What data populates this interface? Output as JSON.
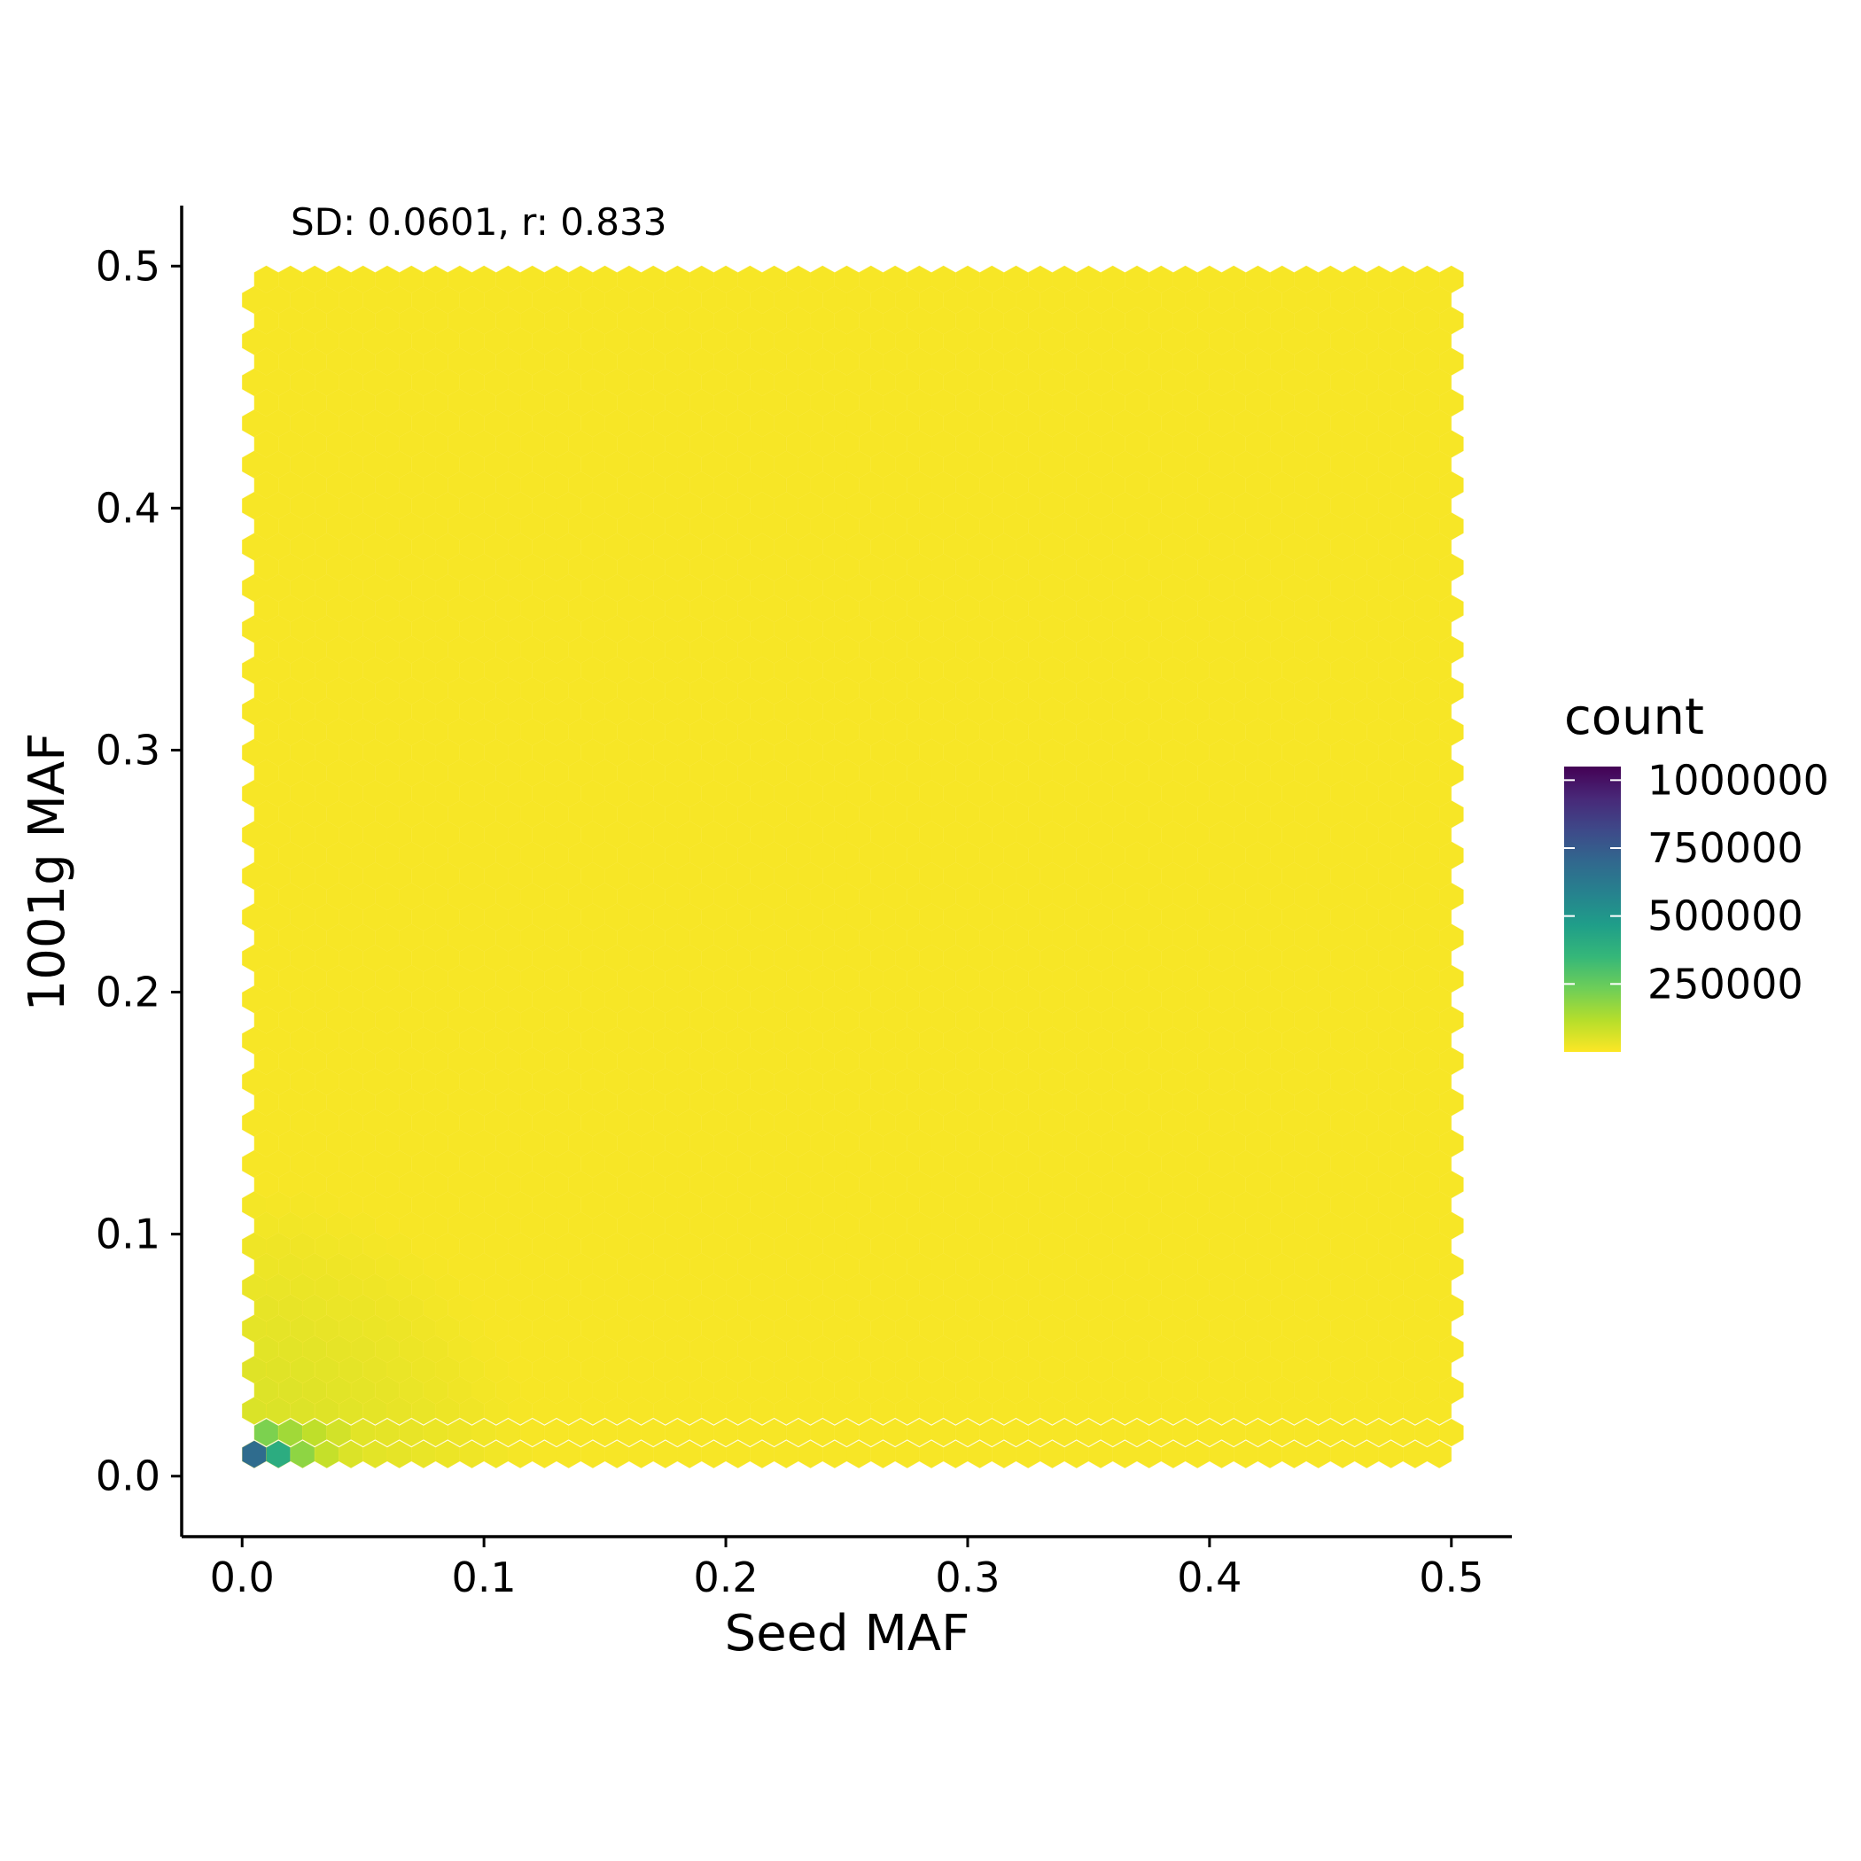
{
  "chart_data": {
    "type": "hexbin",
    "title": "",
    "annotation": "SD: 0.0601, r: 0.833",
    "xlabel": "Seed MAF",
    "ylabel": "1001g MAF",
    "xlim": [
      -0.025,
      0.525
    ],
    "ylim": [
      -0.025,
      0.525
    ],
    "x_ticks": [
      0.0,
      0.1,
      0.2,
      0.3,
      0.4,
      0.5
    ],
    "x_tick_labels": [
      "0.0",
      "0.1",
      "0.2",
      "0.3",
      "0.4",
      "0.5"
    ],
    "y_ticks": [
      0.0,
      0.1,
      0.2,
      0.3,
      0.4,
      0.5
    ],
    "y_tick_labels": [
      "0.0",
      "0.1",
      "0.2",
      "0.3",
      "0.4",
      "0.5"
    ],
    "grid": false,
    "colormap": "viridis (reversed: low = yellow, high = purple)",
    "color_low": "#fde725",
    "color_high": "#440154",
    "legend": {
      "title": "count",
      "placement": "right",
      "min": 0,
      "max": 1050000,
      "breaks": [
        250000,
        500000,
        750000,
        1000000
      ],
      "break_labels": [
        "250000",
        "500000",
        "750000",
        "1000000"
      ]
    },
    "bin_width": 0.01,
    "bins_x_range": [
      0.005,
      0.5
    ],
    "bins_y_range": [
      0.01,
      0.5
    ],
    "notable_bins": [
      {
        "x": 0.005,
        "y": 0.009,
        "count": 680000
      },
      {
        "x": 0.015,
        "y": 0.009,
        "count": 400000
      },
      {
        "x": 0.025,
        "y": 0.009,
        "count": 180000
      },
      {
        "x": 0.035,
        "y": 0.009,
        "count": 90000
      },
      {
        "x": 0.045,
        "y": 0.009,
        "count": 55000
      },
      {
        "x": 0.01,
        "y": 0.018,
        "count": 210000
      },
      {
        "x": 0.02,
        "y": 0.018,
        "count": 150000
      },
      {
        "x": 0.03,
        "y": 0.018,
        "count": 100000
      },
      {
        "x": 0.04,
        "y": 0.018,
        "count": 70000
      }
    ],
    "background_count": 10000
  }
}
